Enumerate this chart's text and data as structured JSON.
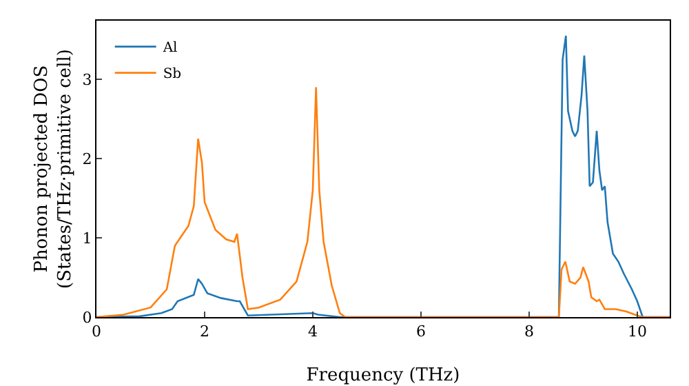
{
  "chart_data": {
    "type": "line",
    "xlabel": "Frequency (THz)",
    "ylabel": "Phonon projected DOS\n(States/THz·primitive cell)",
    "xlim": [
      0,
      10.6
    ],
    "xticks": [
      0,
      2,
      4,
      6,
      8,
      10
    ],
    "ylim": [
      0,
      3.74
    ],
    "yticks": [
      0,
      1,
      2,
      3
    ],
    "grid": false,
    "legend": "top left",
    "marker": "none",
    "line_style": "solid",
    "series": [
      {
        "name": "Al",
        "color": "#1f77b4",
        "x": [
          0,
          0.8,
          1.2,
          1.4,
          1.5,
          1.8,
          1.88,
          1.95,
          2.05,
          2.3,
          2.6,
          2.65,
          2.8,
          4.0,
          4.1,
          4.5,
          8.55,
          8.62,
          8.68,
          8.72,
          8.8,
          8.85,
          8.9,
          8.97,
          9.02,
          9.08,
          9.12,
          9.18,
          9.25,
          9.3,
          9.35,
          9.4,
          9.45,
          9.55,
          9.65,
          9.75,
          9.9,
          10.0,
          10.1,
          10.6
        ],
        "values": [
          0,
          0.01,
          0.05,
          0.1,
          0.2,
          0.28,
          0.48,
          0.42,
          0.3,
          0.24,
          0.2,
          0.2,
          0.02,
          0.05,
          0.03,
          0,
          0,
          3.25,
          3.55,
          2.6,
          2.35,
          2.28,
          2.35,
          2.8,
          3.3,
          2.6,
          1.65,
          1.7,
          2.35,
          1.85,
          1.6,
          1.65,
          1.2,
          0.8,
          0.7,
          0.55,
          0.35,
          0.2,
          0,
          0
        ]
      },
      {
        "name": "Sb",
        "color": "#ff7f0e",
        "x": [
          0,
          0.5,
          1,
          1.3,
          1.45,
          1.7,
          1.8,
          1.88,
          1.95,
          2.0,
          2.2,
          2.4,
          2.55,
          2.6,
          2.7,
          2.8,
          3.0,
          3.4,
          3.7,
          3.9,
          4.0,
          4.06,
          4.12,
          4.2,
          4.35,
          4.5,
          4.6,
          8.55,
          8.6,
          8.67,
          8.75,
          8.85,
          8.95,
          9.0,
          9.1,
          9.15,
          9.25,
          9.3,
          9.4,
          9.6,
          9.8,
          10.0,
          10.1,
          10.6
        ],
        "values": [
          0,
          0.03,
          0.12,
          0.35,
          0.9,
          1.15,
          1.4,
          2.25,
          1.95,
          1.45,
          1.1,
          0.98,
          0.95,
          1.05,
          0.5,
          0.1,
          0.12,
          0.22,
          0.45,
          0.95,
          1.6,
          2.9,
          1.6,
          0.95,
          0.4,
          0.05,
          0,
          0,
          0.6,
          0.7,
          0.45,
          0.42,
          0.5,
          0.63,
          0.45,
          0.25,
          0.2,
          0.22,
          0.1,
          0.1,
          0.07,
          0.02,
          0,
          0
        ]
      }
    ]
  }
}
